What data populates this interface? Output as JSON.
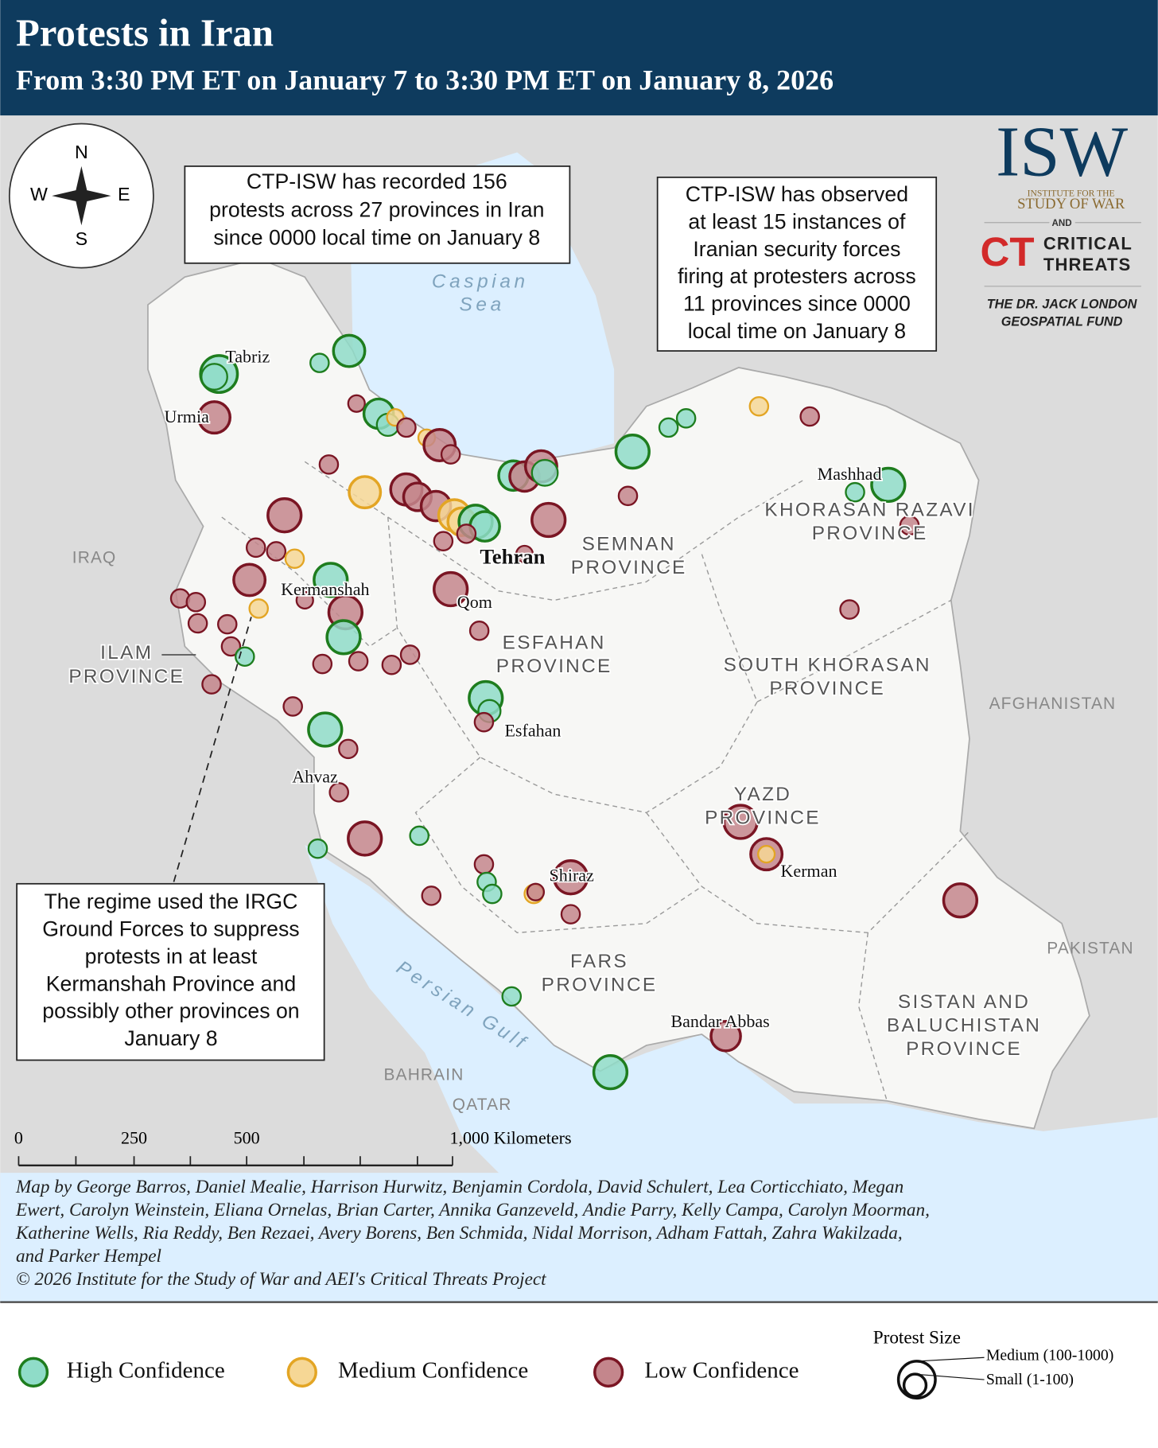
{
  "header": {
    "title": "Protests in Iran",
    "subtitle": "From 3:30 PM ET on January 7 to 3:30 PM ET on January 8, 2026"
  },
  "compass": {
    "n": "N",
    "s": "S",
    "e": "E",
    "w": "W"
  },
  "annotations": [
    {
      "lines": [
        "CTP-ISW has recorded 156",
        "protests across 27 provinces in Iran",
        "since 0000 local time on January 8"
      ]
    },
    {
      "lines": [
        "CTP-ISW has observed",
        "at least 15 instances of",
        "Iranian security forces",
        "firing at protesters across",
        "11 provinces since 0000",
        "local time on January 8"
      ]
    },
    {
      "lines": [
        "The regime used the IRGC",
        "Ground Forces to suppress",
        "protests in at least",
        "Kermanshah Province and",
        "possibly other provinces on",
        "January 8"
      ]
    }
  ],
  "logo": {
    "isw": "ISW",
    "isw_sub1": "INSTITUTE FOR THE",
    "isw_sub2": "STUDY OF WAR",
    "and": "AND",
    "ct_mark": "CT",
    "ct1": "CRITICAL",
    "ct2": "THREATS",
    "fund1": "THE DR. JACK LONDON",
    "fund2": "GEOSPATIAL FUND"
  },
  "water_labels": [
    {
      "lines": [
        "Caspian",
        "Sea"
      ]
    },
    {
      "lines": [
        "Persian Gulf"
      ]
    }
  ],
  "cities": [
    "Tabriz",
    "Urmia",
    "Kermanshah",
    "Tehran",
    "Qom",
    "Esfahan",
    "Ahvaz",
    "Shiraz",
    "Mashhad",
    "Kerman",
    "Bandar Abbas"
  ],
  "provinces": [
    {
      "lines": [
        "SEMNAN",
        "PROVINCE"
      ]
    },
    {
      "lines": [
        "ESFAHAN",
        "PROVINCE"
      ]
    },
    {
      "lines": [
        "ILAM",
        "PROVINCE"
      ]
    },
    {
      "lines": [
        "KHORASAN RAZAVI",
        "PROVINCE"
      ]
    },
    {
      "lines": [
        "SOUTH KHORASAN",
        "PROVINCE"
      ]
    },
    {
      "lines": [
        "YAZD",
        "PROVINCE"
      ]
    },
    {
      "lines": [
        "FARS",
        "PROVINCE"
      ]
    },
    {
      "lines": [
        "SISTAN AND",
        "BALUCHISTAN",
        "PROVINCE"
      ]
    }
  ],
  "countries": [
    "IRAQ",
    "AFGHANISTAN",
    "PAKISTAN",
    "BAHRAIN",
    "QATAR"
  ],
  "scale": {
    "labels": [
      "0",
      "250",
      "500",
      "1,000 Kilometers"
    ]
  },
  "credits": [
    "Map by George Barros, Daniel Mealie, Harrison Hurwitz, Benjamin Cordola, David Schulert, Lea Corticchiato, Megan",
    "Ewert, Carolyn Weinstein, Eliana Ornelas, Brian Carter, Annika Ganzeveld, Andie Parry, Kelly Campa, Carolyn Moorman,",
    "Katherine Wells, Ria Reddy, Ben Rezaei, Avery Borens, Ben Schmida, Nidal Morrison, Adham Fattah, Zahra Wakilzada,",
    "and Parker Hempel",
    "© 2026 Institute for the Study of War and AEI's Critical Threats Project"
  ],
  "legend": {
    "items": [
      "High Confidence",
      "Medium Confidence",
      "Low Confidence"
    ],
    "size_title": "Protest Size",
    "medium": "Medium (100-1000)",
    "small": "Small (1-100)"
  }
}
